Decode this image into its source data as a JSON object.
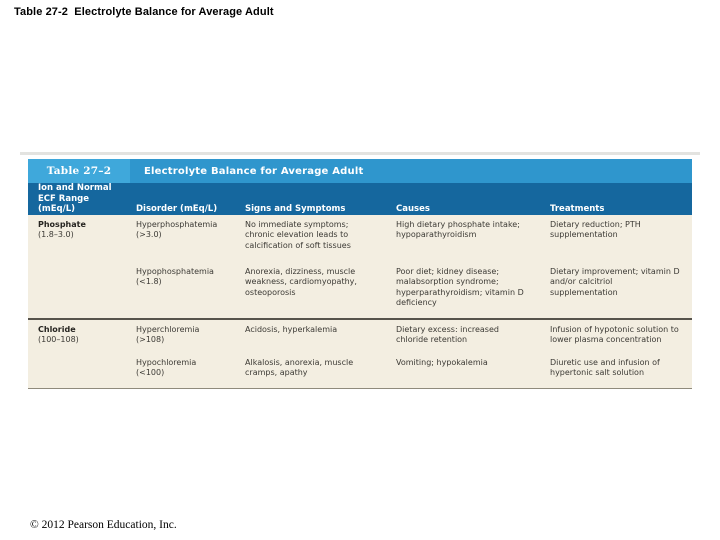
{
  "page": {
    "title": "Table 27-2  Electrolyte Balance for Average Adult",
    "footer": "© 2012 Pearson Education, Inc."
  },
  "colors": {
    "band_chip_blue": "#3fa8db",
    "band_blue": "#2f96cd",
    "header_dark_blue": "#15679e",
    "body_cream": "#f3eee1"
  },
  "table": {
    "label": "Table 27–2",
    "caption": "Electrolyte Balance for Average Adult",
    "columns": [
      "Ion and Normal ECF Range (mEq/L)",
      "Disorder (mEq/L)",
      "Signs and Symptoms",
      "Causes",
      "Treatments"
    ],
    "groups": [
      {
        "ion": "Phosphate",
        "range": "(1.8–3.0)",
        "rows": [
          {
            "disorder": "Hyperphosphatemia",
            "value": "(>3.0)",
            "signs": "No immediate symptoms; chronic elevation leads to calcification of soft tissues",
            "causes": "High dietary phosphate intake; hypoparathyroidism",
            "treatments": "Dietary reduction; PTH supplementation"
          },
          {
            "disorder": "Hypophosphatemia",
            "value": "(<1.8)",
            "signs": "Anorexia, dizziness, muscle weakness, cardiomyopathy, osteoporosis",
            "causes": "Poor diet; kidney disease; malabsorption syndrome; hyperparathyroidism; vitamin D deficiency",
            "treatments": "Dietary improvement; vitamin D and/or calcitriol supplementation"
          }
        ]
      },
      {
        "ion": "Chloride",
        "range": "(100–108)",
        "rows": [
          {
            "disorder": "Hyperchloremia",
            "value": "(>108)",
            "signs": "Acidosis, hyperkalemia",
            "causes": "Dietary excess: increased chloride retention",
            "treatments": "Infusion of hypotonic solution to lower plasma concentration"
          },
          {
            "disorder": "Hypochloremia",
            "value": "(<100)",
            "signs": "Alkalosis, anorexia, muscle cramps, apathy",
            "causes": "Vomiting; hypokalemia",
            "treatments": "Diuretic use and infusion of hypertonic salt solution"
          }
        ]
      }
    ]
  }
}
